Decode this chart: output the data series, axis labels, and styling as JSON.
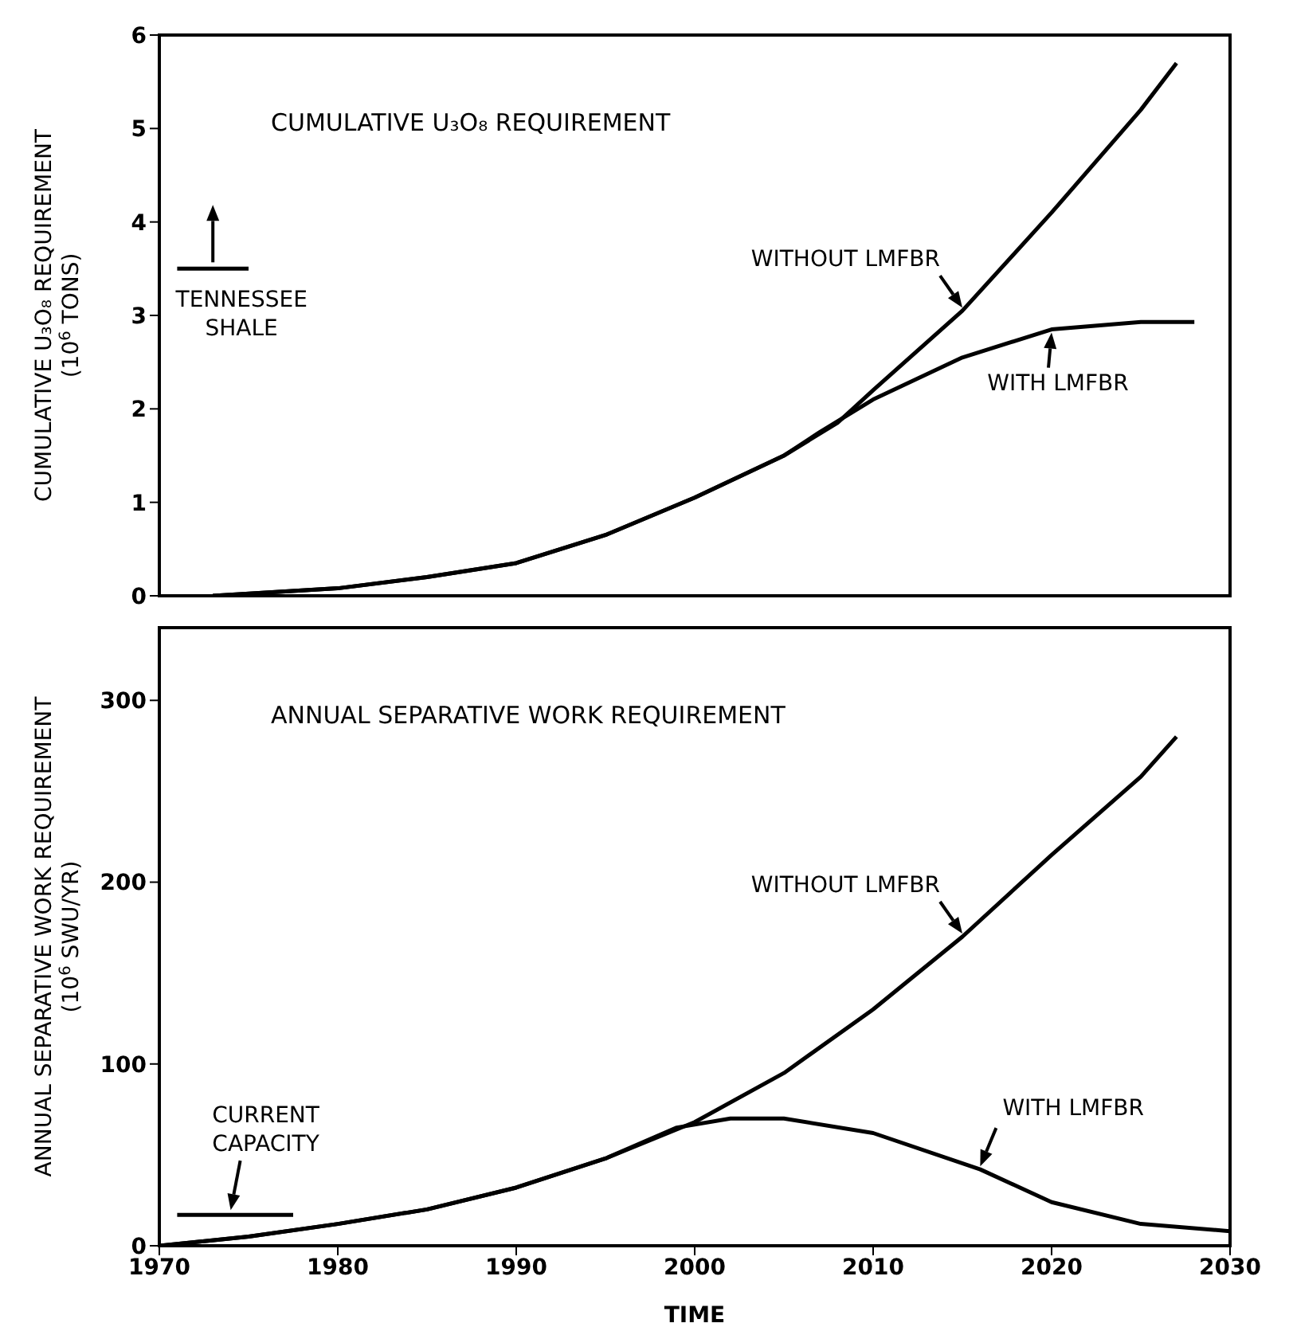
{
  "chart_data": [
    {
      "type": "line",
      "title": "CUMULATIVE U₃O₈ REQUIREMENT",
      "ylabel": "CUMULATIVE U₃O₈ REQUIREMENT\n(10$^{6}$ TONS)",
      "xlim": [
        1970,
        2030
      ],
      "xticks": [
        1970,
        1980,
        1990,
        2000,
        2010,
        2020,
        2030
      ],
      "ylim": [
        0,
        6
      ],
      "yticks": [
        0,
        1,
        2,
        3,
        4,
        5,
        6
      ],
      "tick_labels": "y",
      "marker": "none",
      "line_style": "solid",
      "series": [
        {
          "name": "WITHOUT LMFBR",
          "color": "#000000",
          "x": [
            1973,
            1980,
            1985,
            1990,
            1995,
            2000,
            2005,
            2008,
            2010,
            2015,
            2020,
            2025,
            2027
          ],
          "values": [
            0,
            0.08,
            0.2,
            0.35,
            0.65,
            1.05,
            1.5,
            1.85,
            2.2,
            3.05,
            4.1,
            5.2,
            5.7
          ]
        },
        {
          "name": "WITH LMFBR",
          "color": "#000000",
          "x": [
            1973,
            1980,
            1985,
            1990,
            1995,
            2000,
            2005,
            2007,
            2010,
            2015,
            2020,
            2025,
            2028
          ],
          "values": [
            0,
            0.08,
            0.2,
            0.35,
            0.65,
            1.05,
            1.5,
            1.75,
            2.1,
            2.55,
            2.85,
            2.93,
            2.93
          ]
        },
        {
          "color": "#000000",
          "x": [
            1971,
            1975
          ],
          "values": [
            3.5,
            3.5
          ]
        }
      ],
      "annotations": [
        {
          "text": "TENNESSEE SHALE",
          "x": 1973,
          "y": 3.5
        }
      ]
    },
    {
      "type": "line",
      "title": "ANNUAL SEPARATIVE WORK REQUIREMENT",
      "xlabel": "TIME",
      "ylabel": "ANNUAL SEPARATIVE WORK REQUIREMENT\n(10$^{6}$ SWU/YR)",
      "xlim": [
        1970,
        2030
      ],
      "xticks": [
        1970,
        1980,
        1990,
        2000,
        2010,
        2020,
        2030
      ],
      "ylim": [
        0,
        340
      ],
      "yticks": [
        0,
        100,
        200,
        300
      ],
      "marker": "none",
      "line_style": "solid",
      "series": [
        {
          "name": "WITHOUT LMFBR",
          "color": "#000000",
          "x": [
            1970,
            1975,
            1980,
            1985,
            1990,
            1995,
            2000,
            2005,
            2010,
            2015,
            2020,
            2025,
            2027
          ],
          "values": [
            0,
            5,
            12,
            20,
            32,
            48,
            68,
            95,
            130,
            170,
            215,
            258,
            280
          ]
        },
        {
          "name": "WITH LMFBR",
          "color": "#000000",
          "x": [
            1970,
            1975,
            1980,
            1985,
            1990,
            1995,
            1999,
            2002,
            2005,
            2010,
            2016,
            2020,
            2025,
            2030
          ],
          "values": [
            0,
            5,
            12,
            20,
            32,
            48,
            65,
            70,
            70,
            62,
            42,
            24,
            12,
            8
          ]
        },
        {
          "color": "#000000",
          "x": [
            1971,
            1977.5
          ],
          "values": [
            17,
            17
          ]
        }
      ],
      "annotations": [
        {
          "text": "CURRENT CAPACITY",
          "x": 1974,
          "y": 17
        }
      ]
    }
  ]
}
